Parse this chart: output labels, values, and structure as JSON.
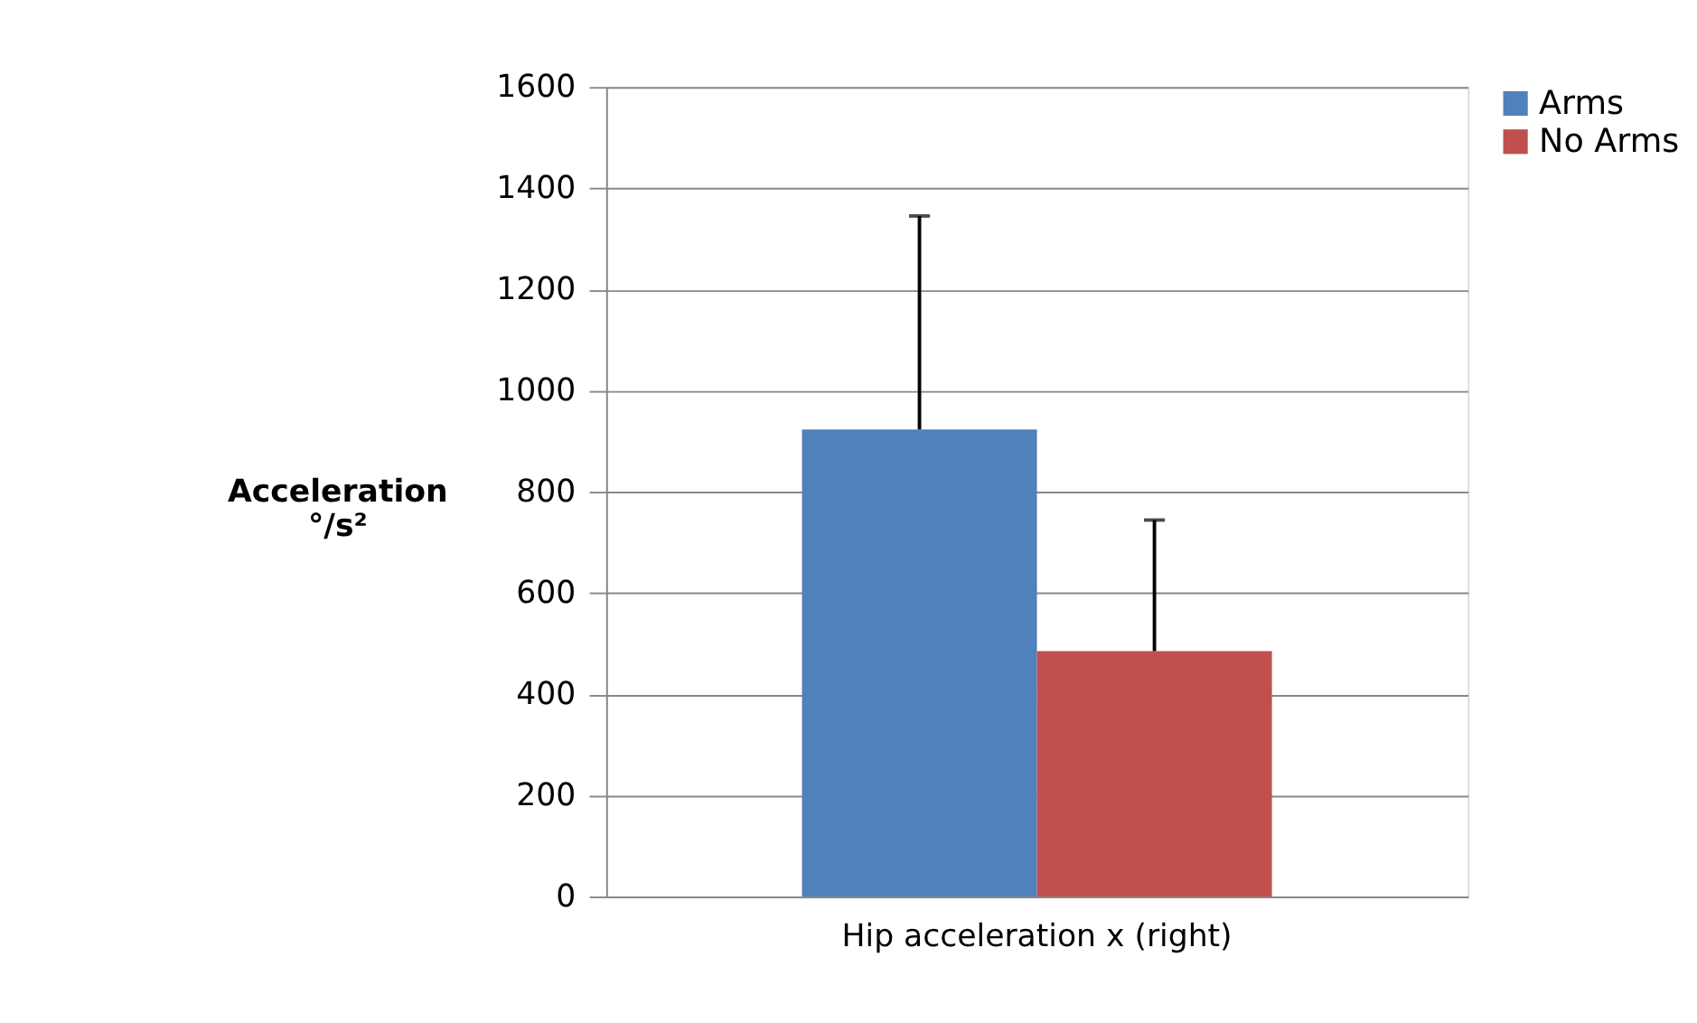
{
  "chart_data": {
    "type": "bar",
    "ylabel": "Acceleration\n°/s²",
    "categories": [
      "Hip acceleration x (right)"
    ],
    "series": [
      {
        "name": "Arms",
        "color": "#4f81bd",
        "values": [
          923
        ],
        "errors": [
          [
            923,
            1345
          ]
        ]
      },
      {
        "name": "No Arms",
        "color": "#c0504d",
        "values": [
          485
        ],
        "errors": [
          [
            485,
            744
          ]
        ]
      }
    ],
    "ylim": [
      0,
      1600
    ],
    "yticks": [
      0,
      200,
      400,
      600,
      800,
      1000,
      1200,
      1400,
      1600
    ],
    "grid": "y",
    "legend": "right"
  }
}
